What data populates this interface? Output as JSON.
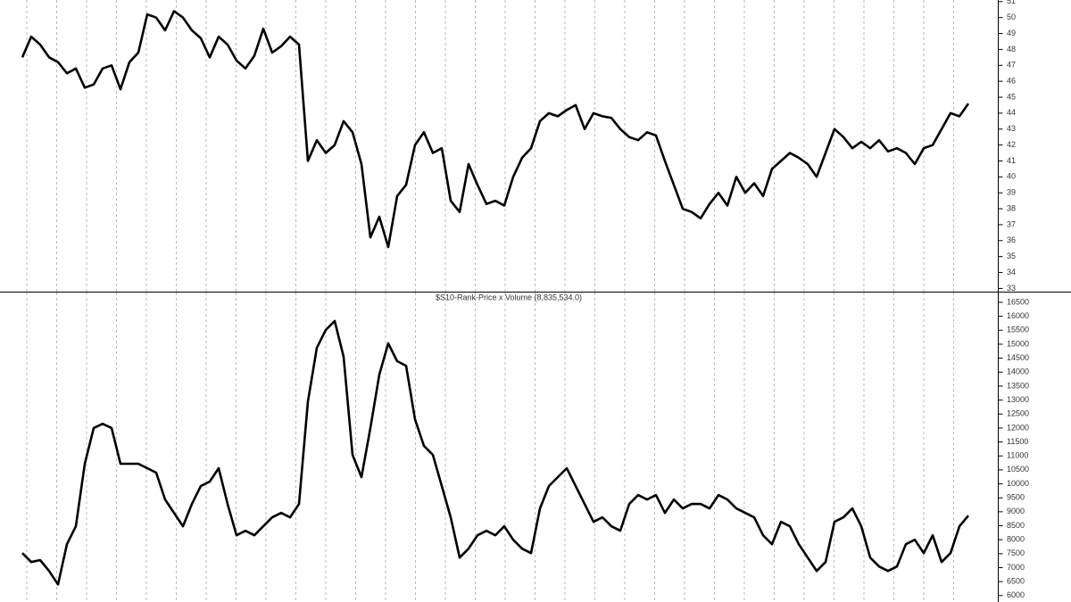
{
  "chart_data": [
    {
      "type": "line",
      "xgrid": true,
      "color": "#000000",
      "ylim": [
        32.8,
        51.1
      ],
      "yticks": [
        33,
        34,
        35,
        36,
        37,
        38,
        39,
        40,
        41,
        42,
        43,
        44,
        45,
        46,
        47,
        48,
        49,
        50,
        51
      ],
      "values": [
        47.5,
        48.8,
        48.3,
        47.5,
        47.2,
        46.5,
        46.8,
        45.6,
        45.8,
        46.8,
        47.0,
        45.5,
        47.2,
        47.8,
        50.2,
        50.0,
        49.2,
        50.4,
        50.0,
        49.2,
        48.7,
        47.5,
        48.8,
        48.3,
        47.3,
        46.8,
        47.6,
        49.3,
        47.8,
        48.2,
        48.8,
        48.3,
        41.0,
        42.3,
        41.5,
        42.0,
        43.5,
        42.8,
        40.8,
        36.2,
        37.5,
        35.6,
        38.8,
        39.5,
        42.0,
        42.8,
        41.5,
        41.8,
        38.5,
        37.8,
        40.8,
        39.5,
        38.3,
        38.5,
        38.2,
        40.0,
        41.2,
        41.8,
        43.5,
        44.0,
        43.8,
        44.2,
        44.5,
        43.0,
        44.0,
        43.8,
        43.7,
        43.0,
        42.5,
        42.3,
        42.8,
        42.6,
        41.0,
        39.5,
        38.0,
        37.8,
        37.4,
        38.3,
        39.0,
        38.2,
        40.0,
        39.0,
        39.6,
        38.8,
        40.5,
        41.0,
        41.5,
        41.2,
        40.8,
        40.0,
        41.5,
        43.0,
        42.5,
        41.8,
        42.2,
        41.8,
        42.3,
        41.6,
        41.8,
        41.5,
        40.8,
        41.8,
        42.0,
        43.0,
        44.0,
        43.8,
        44.6
      ]
    },
    {
      "type": "line",
      "xgrid": true,
      "color": "#000000",
      "title": "$S10-Rank-Price x Volume (8,835,534.0)",
      "ylim": [
        5770,
        16850
      ],
      "yticks": [
        6000,
        6500,
        7000,
        7500,
        8000,
        8500,
        9000,
        9500,
        10000,
        10500,
        11000,
        11500,
        12000,
        12500,
        13000,
        13500,
        14000,
        14500,
        15000,
        15500,
        16000,
        16500
      ],
      "values": [
        7520,
        7200,
        7270,
        6880,
        6400,
        7840,
        8480,
        10720,
        12000,
        12150,
        12000,
        10720,
        10720,
        10720,
        10560,
        10400,
        9440,
        8960,
        8480,
        9280,
        9920,
        10080,
        10560,
        9280,
        8160,
        8320,
        8160,
        8480,
        8800,
        8960,
        8800,
        9280,
        12950,
        14870,
        15510,
        15830,
        14550,
        11040,
        10240,
        12000,
        13910,
        15030,
        14390,
        14230,
        12310,
        11360,
        11040,
        9920,
        8800,
        7360,
        7680,
        8160,
        8320,
        8160,
        8480,
        8000,
        7680,
        7520,
        9120,
        9920,
        10240,
        10560,
        9920,
        9280,
        8640,
        8800,
        8480,
        8320,
        9280,
        9600,
        9440,
        9600,
        8960,
        9440,
        9120,
        9280,
        9280,
        9120,
        9600,
        9440,
        9120,
        8960,
        8800,
        8160,
        7840,
        8640,
        8480,
        7840,
        7360,
        6880,
        7200,
        8640,
        8800,
        9120,
        8480,
        7360,
        7040,
        6880,
        7040,
        7840,
        8000,
        7520,
        8160,
        7200,
        7520,
        8480,
        8860
      ]
    }
  ]
}
